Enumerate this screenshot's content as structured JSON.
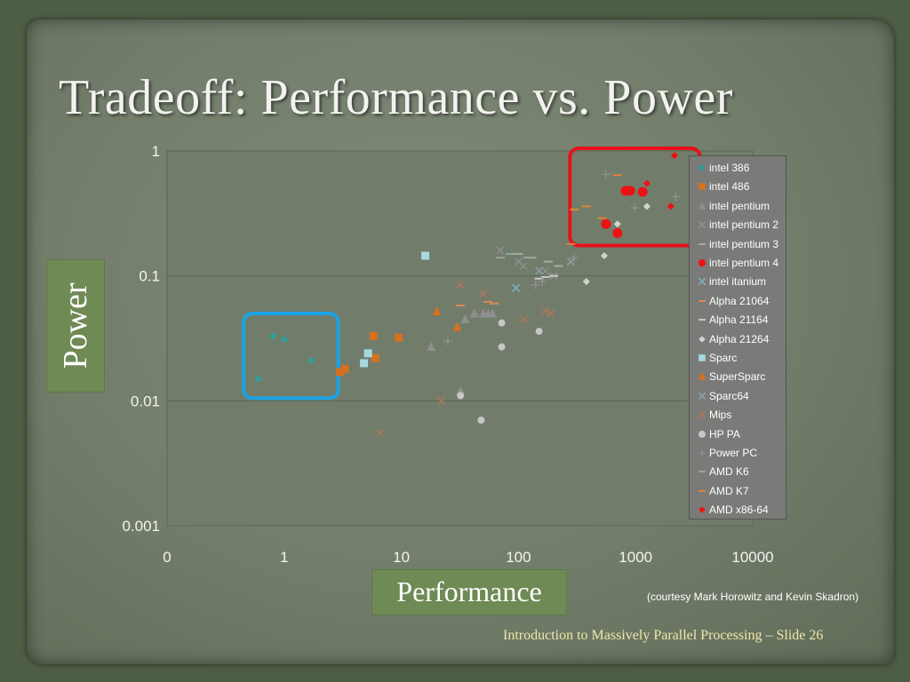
{
  "slide": {
    "title": "Tradeoff: Performance vs. Power",
    "ylabel": "Power",
    "xlabel": "Performance",
    "courtesy": "(courtesy Mark Horowitz and Kevin Skadron)",
    "footer": "Introduction to Massively Parallel Processing – Slide 26"
  },
  "colors": {
    "blue_highlight": "#1aa2e6",
    "red_highlight": "#e8101a",
    "label_box": "#6f8a54"
  },
  "chart_data": {
    "type": "scatter",
    "title": "",
    "xlabel": "Performance",
    "ylabel": "Power",
    "x_scale": "log",
    "y_scale": "log",
    "xlim": [
      0.1,
      10000
    ],
    "ylim": [
      0.001,
      1
    ],
    "x_ticks": [
      "0",
      "1",
      "10",
      "100",
      "1000",
      "10000"
    ],
    "y_ticks": [
      "1",
      "0.1",
      "0.01",
      "0.001"
    ],
    "grid": "horizontal",
    "legend": "right",
    "series": [
      {
        "name": "intel 386",
        "color": "#2aa39a",
        "marker": "diamond",
        "points": [
          [
            0.6,
            0.015
          ],
          [
            0.8,
            0.033
          ],
          [
            1.0,
            0.031
          ],
          [
            1.7,
            0.021
          ]
        ]
      },
      {
        "name": "intel 486",
        "color": "#d6711f",
        "marker": "square",
        "points": [
          [
            3.0,
            0.017
          ],
          [
            3.3,
            0.018
          ],
          [
            6.0,
            0.022
          ],
          [
            5.8,
            0.033
          ],
          [
            9.5,
            0.032
          ]
        ]
      },
      {
        "name": "intel pentium",
        "color": "#8f8f8f",
        "marker": "triangle",
        "points": [
          [
            18,
            0.027
          ],
          [
            32,
            0.012
          ],
          [
            35,
            0.045
          ],
          [
            42,
            0.05
          ],
          [
            50,
            0.05
          ],
          [
            55,
            0.05
          ],
          [
            60,
            0.05
          ]
        ]
      },
      {
        "name": "intel pentium 2",
        "color": "#8f8f8f",
        "marker": "cross",
        "points": [
          [
            70,
            0.16
          ],
          [
            100,
            0.13
          ],
          [
            110,
            0.12
          ],
          [
            170,
            0.11
          ],
          [
            200,
            0.1
          ]
        ]
      },
      {
        "name": "intel pentium 3",
        "color": "#a9a9a9",
        "marker": "dash",
        "points": [
          [
            100,
            0.15
          ],
          [
            130,
            0.14
          ],
          [
            180,
            0.13
          ],
          [
            220,
            0.12
          ]
        ]
      },
      {
        "name": "intel pentium 4",
        "color": "#ee1111",
        "marker": "circle",
        "points": [
          [
            560,
            0.26
          ],
          [
            700,
            0.22
          ],
          [
            820,
            0.48
          ],
          [
            900,
            0.48
          ],
          [
            1150,
            0.47
          ]
        ]
      },
      {
        "name": "intel itanium",
        "color": "#7ab0c0",
        "marker": "cross",
        "points": [
          [
            95,
            0.08
          ]
        ]
      },
      {
        "name": "Alpha 21064",
        "color": "#d98a55",
        "marker": "dash",
        "points": [
          [
            32,
            0.058
          ],
          [
            55,
            0.062
          ],
          [
            62,
            0.06
          ]
        ]
      },
      {
        "name": "Alpha 21164",
        "color": "#c8c8c8",
        "marker": "dash",
        "points": [
          [
            150,
            0.095
          ],
          [
            170,
            0.098
          ],
          [
            200,
            0.1
          ]
        ]
      },
      {
        "name": "Alpha 21264",
        "color": "#d2d2d2",
        "marker": "diamond",
        "points": [
          [
            380,
            0.09
          ],
          [
            540,
            0.145
          ],
          [
            700,
            0.26
          ],
          [
            1250,
            0.36
          ]
        ]
      },
      {
        "name": "Sparc",
        "color": "#a8d8e0",
        "marker": "square",
        "points": [
          [
            4.8,
            0.02
          ],
          [
            5.2,
            0.024
          ],
          [
            16,
            0.145
          ]
        ]
      },
      {
        "name": "SuperSparc",
        "color": "#d6711f",
        "marker": "triangle",
        "points": [
          [
            20,
            0.052
          ],
          [
            30,
            0.039
          ]
        ]
      },
      {
        "name": "Sparc64",
        "color": "#8ba2ac",
        "marker": "cross",
        "points": [
          [
            150,
            0.11
          ],
          [
            280,
            0.13
          ]
        ]
      },
      {
        "name": "Mips",
        "color": "#b0755a",
        "marker": "cross",
        "points": [
          [
            6.5,
            0.0055
          ],
          [
            22,
            0.01
          ],
          [
            32,
            0.085
          ],
          [
            50,
            0.072
          ],
          [
            110,
            0.045
          ],
          [
            170,
            0.052
          ],
          [
            190,
            0.05
          ]
        ]
      },
      {
        "name": "HP PA",
        "color": "#c6c6c6",
        "marker": "circle",
        "points": [
          [
            32,
            0.011
          ],
          [
            48,
            0.007
          ],
          [
            72,
            0.027
          ],
          [
            72,
            0.042
          ],
          [
            150,
            0.036
          ]
        ]
      },
      {
        "name": "Power PC",
        "color": "#8f8f8f",
        "marker": "plus",
        "points": [
          [
            25,
            0.03
          ],
          [
            140,
            0.085
          ],
          [
            160,
            0.09
          ],
          [
            300,
            0.14
          ],
          [
            560,
            0.65
          ],
          [
            980,
            0.35
          ],
          [
            2200,
            0.43
          ]
        ]
      },
      {
        "name": "AMD K6",
        "color": "#8fa8a0",
        "marker": "dash",
        "points": [
          [
            70,
            0.14
          ],
          [
            85,
            0.15
          ],
          [
            120,
            0.14
          ]
        ]
      },
      {
        "name": "AMD K7",
        "color": "#e0843a",
        "marker": "dash",
        "points": [
          [
            280,
            0.18
          ],
          [
            300,
            0.34
          ],
          [
            380,
            0.36
          ],
          [
            520,
            0.29
          ],
          [
            700,
            0.64
          ]
        ]
      },
      {
        "name": "AMD x86-64",
        "color": "#ee1111",
        "marker": "diamond",
        "points": [
          [
            1250,
            0.55
          ],
          [
            2000,
            0.36
          ],
          [
            2150,
            0.92
          ]
        ]
      }
    ]
  }
}
